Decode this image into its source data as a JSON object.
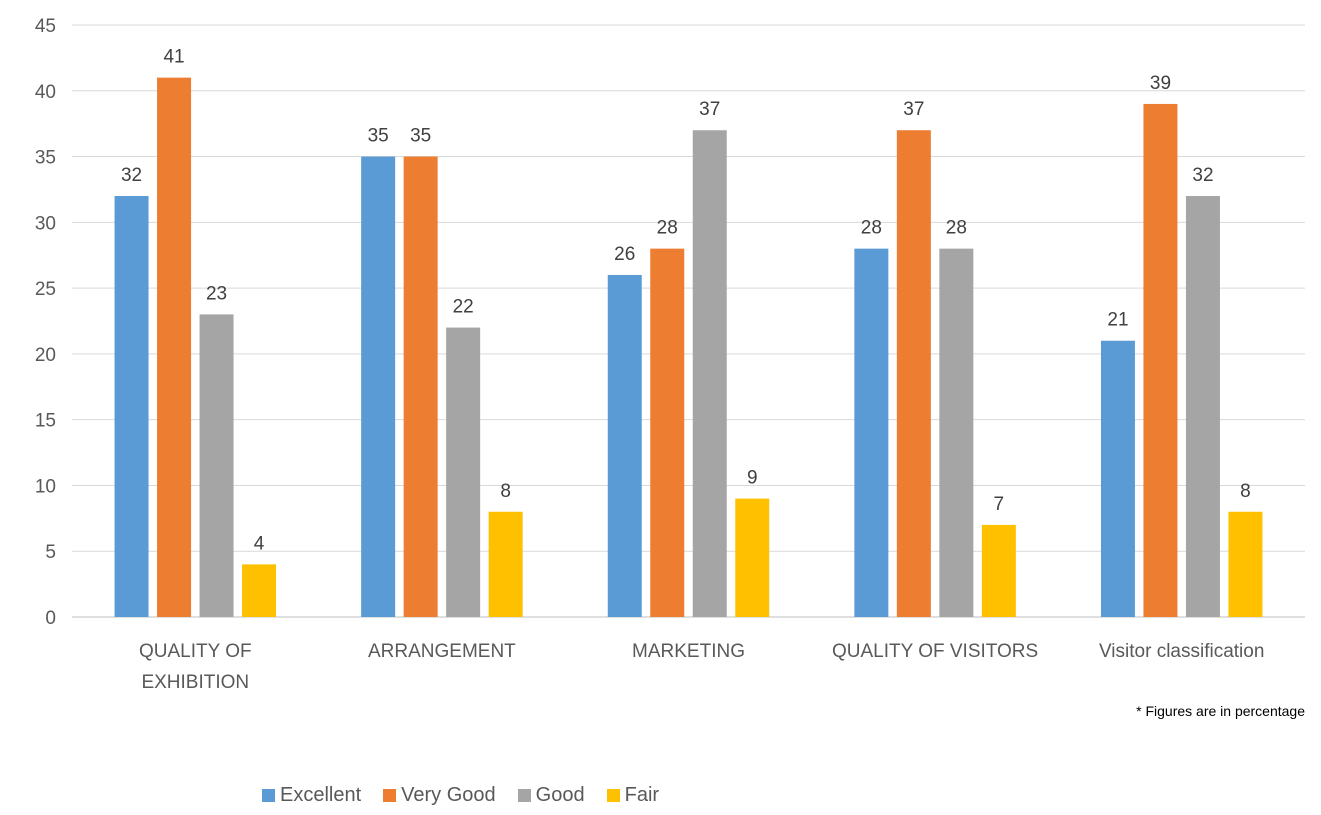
{
  "chart_data": {
    "type": "bar",
    "categories": [
      "QUALITY OF EXHIBITION",
      "ARRANGEMENT",
      "MARKETING",
      "QUALITY OF VISITORS",
      "Visitor classification"
    ],
    "category_label_lines": [
      [
        "QUALITY OF",
        "EXHIBITION"
      ],
      [
        "ARRANGEMENT"
      ],
      [
        "MARKETING"
      ],
      [
        "QUALITY OF VISITORS"
      ],
      [
        "Visitor classification"
      ]
    ],
    "series": [
      {
        "name": "Excellent",
        "color": "#5B9BD5",
        "values": [
          32,
          35,
          26,
          28,
          21
        ]
      },
      {
        "name": "Very Good",
        "color": "#ED7D31",
        "values": [
          41,
          35,
          28,
          37,
          39
        ]
      },
      {
        "name": "Good",
        "color": "#A5A5A5",
        "values": [
          23,
          22,
          37,
          28,
          32
        ]
      },
      {
        "name": "Fair",
        "color": "#FFC000",
        "values": [
          4,
          8,
          9,
          7,
          8
        ]
      }
    ],
    "ylim": [
      0,
      45
    ],
    "yticks": [
      0,
      5,
      10,
      15,
      20,
      25,
      30,
      35,
      40,
      45
    ],
    "grid": true,
    "legend_position": "bottom",
    "data_labels": true
  },
  "note": "* Figures are in percentage"
}
